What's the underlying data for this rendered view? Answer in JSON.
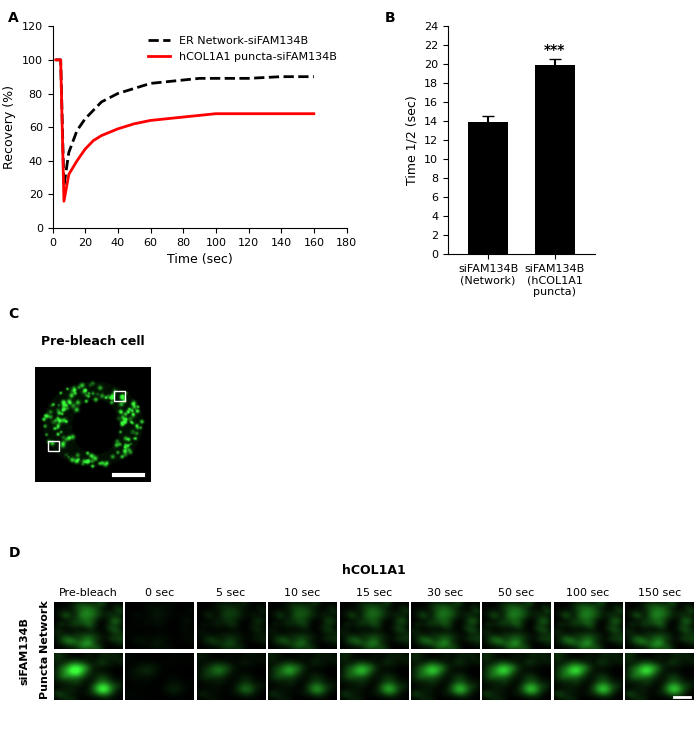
{
  "chart_data": [
    {
      "type": "line",
      "x_label": "Time (sec)",
      "y_label": "Recovery (%)",
      "x": [
        2,
        5,
        7,
        10,
        15,
        20,
        25,
        30,
        40,
        50,
        60,
        70,
        80,
        90,
        100,
        120,
        140,
        160
      ],
      "series": [
        {
          "name": "ER Network-siFAM134B",
          "color": "#000000",
          "line_style": "dashed",
          "values": [
            100,
            100,
            25,
            45,
            58,
            65,
            70,
            75,
            80,
            83,
            86,
            87,
            88,
            89,
            89,
            89,
            90,
            90
          ]
        },
        {
          "name": "hCOL1A1 puncta-siFAM134B",
          "color": "#ff0000",
          "line_style": "solid",
          "values": [
            100,
            100,
            16,
            32,
            40,
            47,
            52,
            55,
            59,
            62,
            64,
            65,
            66,
            67,
            68,
            68,
            68,
            68
          ]
        }
      ],
      "xlim": [
        0,
        180
      ],
      "xticks": [
        0,
        20,
        40,
        60,
        80,
        100,
        120,
        140,
        160,
        180
      ],
      "ylim": [
        0,
        120
      ],
      "yticks": [
        0,
        20,
        40,
        60,
        80,
        100,
        120
      ],
      "legend": "upper right"
    },
    {
      "type": "bar",
      "y_label": "Time 1/2 (sec)",
      "categories": [
        "siFAM134B\n(Network)",
        "siFAM134B\n(hCOL1A1\npuncta)"
      ],
      "values": [
        13.9,
        19.9
      ],
      "errors": [
        0.6,
        0.6
      ],
      "color": "#000000",
      "ylim": [
        0,
        24
      ],
      "yticks": [
        0,
        2,
        4,
        6,
        8,
        10,
        12,
        14,
        16,
        18,
        20,
        22,
        24
      ],
      "annotations": [
        {
          "text": "***",
          "category": "siFAM134B\n(hCOL1A1\npuncta)"
        }
      ]
    }
  ],
  "panel_labels": [
    "A",
    "B",
    "C",
    "D"
  ],
  "image_c": {
    "title": "Pre-bleach cell"
  },
  "image_d": {
    "header": "hCOL1A1",
    "columns": [
      "Pre-bleach",
      "0 sec",
      "5 sec",
      "10 sec",
      "15 sec",
      "30 sec",
      "50 sec",
      "100 sec",
      "150 sec"
    ],
    "group": "siFAM134B",
    "rows": [
      "Network",
      "Puncta"
    ]
  }
}
